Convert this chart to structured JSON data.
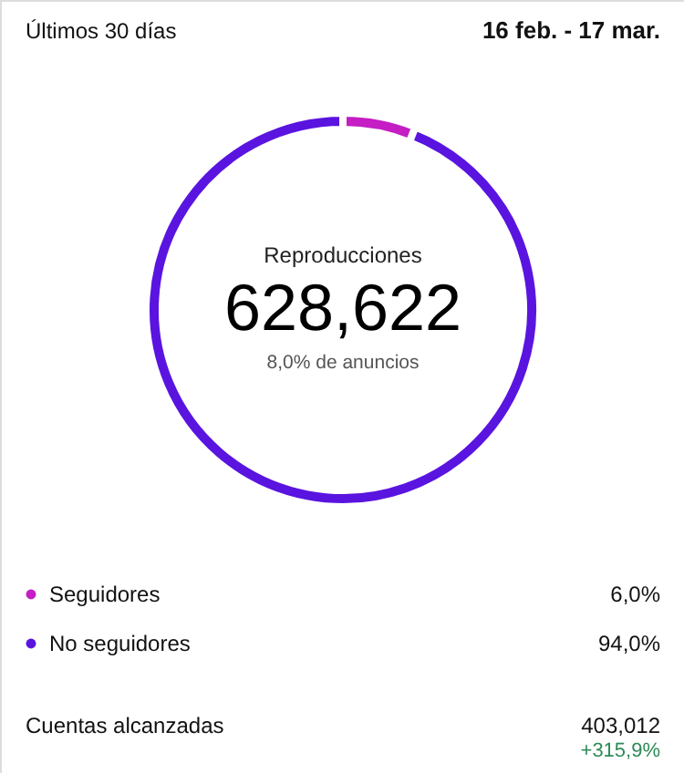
{
  "chart_data": {
    "type": "donut",
    "title": "Reproducciones",
    "categories": [
      "Seguidores",
      "No seguidores"
    ],
    "values": [
      6.0,
      94.0
    ],
    "colors": [
      "#c41ec4",
      "#5a14e0"
    ],
    "value_labels": [
      "6,0%",
      "94,0%"
    ],
    "legend": "bottom",
    "annotations": [
      "Últimos 30 días",
      "16 feb. - 17 mar.",
      "628,622",
      "8,0% de anuncios",
      "Cuentas alcanzadas",
      "403,012",
      "+315,9%"
    ]
  }
}
